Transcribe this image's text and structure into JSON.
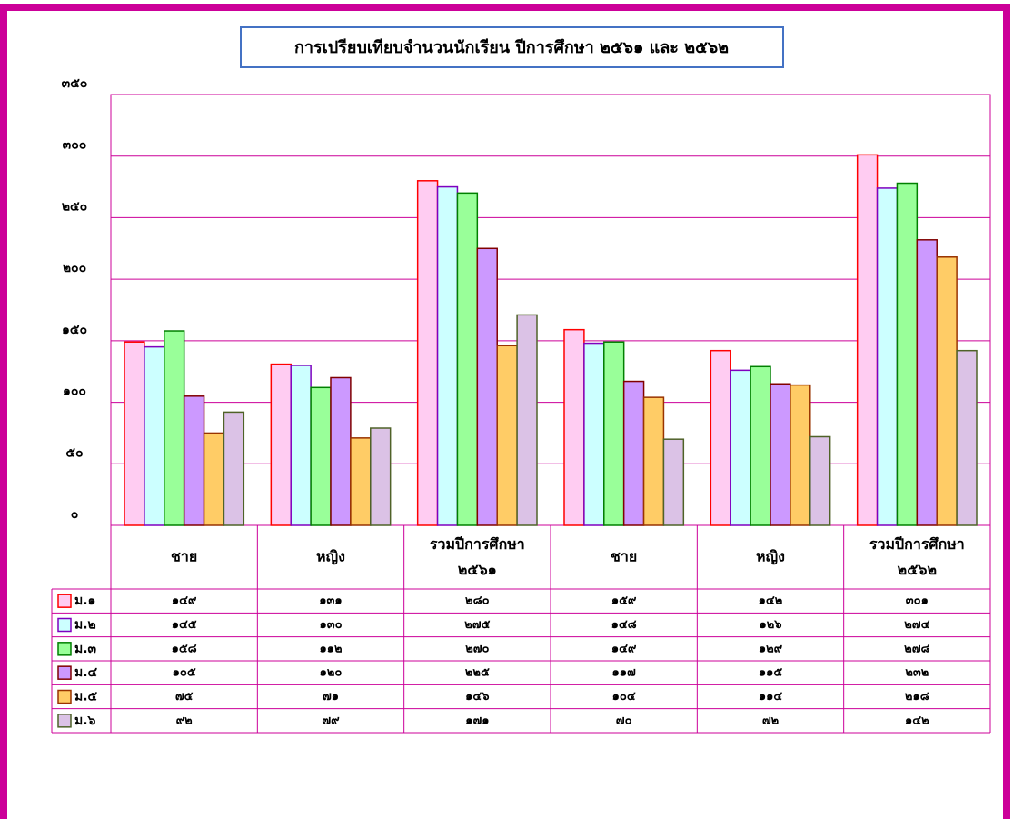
{
  "chart_data": {
    "type": "bar",
    "title": "การเปรียบเทียบจำนวนนักเรียน ปีการศึกษา ๒๕๖๑ และ ๒๕๖๒",
    "categories": [
      "ชาย",
      "หญิง",
      "รวมปีการศึกษา\n๒๕๖๑",
      "ชาย",
      "หญิง",
      "รวมปีการศึกษา\n๒๕๖๒"
    ],
    "series": [
      {
        "name": "ม.๑",
        "color": "#ffccf2",
        "edgecolor": "#ff0000",
        "values": [
          149,
          131,
          280,
          159,
          142,
          301
        ],
        "value_labels": [
          "๑๔๙",
          "๑๓๑",
          "๒๘๐",
          "๑๕๙",
          "๑๔๒",
          "๓๐๑"
        ]
      },
      {
        "name": "ม.๒",
        "color": "#ccffff",
        "edgecolor": "#7f00bf",
        "values": [
          145,
          130,
          275,
          148,
          126,
          274
        ],
        "value_labels": [
          "๑๔๕",
          "๑๓๐",
          "๒๗๕",
          "๑๔๘",
          "๑๒๖",
          "๒๗๔"
        ]
      },
      {
        "name": "ม.๓",
        "color": "#99ff99",
        "edgecolor": "#008000",
        "values": [
          158,
          112,
          270,
          149,
          129,
          278
        ],
        "value_labels": [
          "๑๕๘",
          "๑๑๒",
          "๒๗๐",
          "๑๔๙",
          "๑๒๙",
          "๒๗๘"
        ]
      },
      {
        "name": "ม.๔",
        "color": "#cc99ff",
        "edgecolor": "#800000",
        "values": [
          105,
          120,
          225,
          117,
          115,
          232
        ],
        "value_labels": [
          "๑๐๕",
          "๑๒๐",
          "๒๒๕",
          "๑๑๗",
          "๑๑๕",
          "๒๓๒"
        ]
      },
      {
        "name": "ม.๕",
        "color": "#ffcc66",
        "edgecolor": "#993300",
        "values": [
          75,
          71,
          146,
          104,
          114,
          218
        ],
        "value_labels": [
          "๗๕",
          "๗๑",
          "๑๔๖",
          "๑๐๔",
          "๑๑๔",
          "๒๑๘"
        ]
      },
      {
        "name": "ม.๖",
        "color": "#dbc2e6",
        "edgecolor": "#4f6228",
        "values": [
          92,
          79,
          171,
          70,
          72,
          142
        ],
        "value_labels": [
          "๙๒",
          "๗๙",
          "๑๗๑",
          "๗๐",
          "๗๒",
          "๑๔๒"
        ]
      }
    ],
    "ylim": [
      0,
      350
    ],
    "yticks": [
      {
        "value": 0,
        "label": "๐"
      },
      {
        "value": 50,
        "label": "๕๐"
      },
      {
        "value": 100,
        "label": "๑๐๐"
      },
      {
        "value": 150,
        "label": "๑๕๐"
      },
      {
        "value": 200,
        "label": "๒๐๐"
      },
      {
        "value": 250,
        "label": "๒๕๐"
      },
      {
        "value": 300,
        "label": "๓๐๐"
      },
      {
        "value": 350,
        "label": "๓๕๐"
      }
    ],
    "grid": true
  }
}
